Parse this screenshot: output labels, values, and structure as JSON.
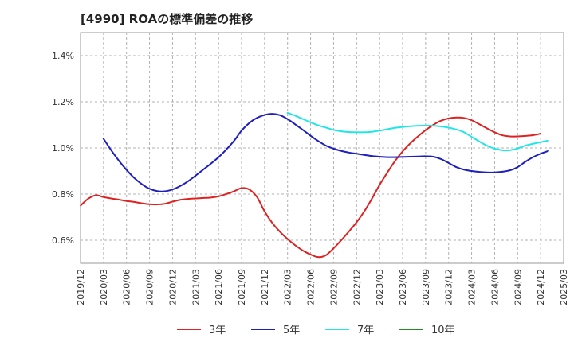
{
  "chart_data": {
    "type": "line",
    "title": "[4990]  ROAの標準偏差の推移",
    "xlabel": "",
    "ylabel": "",
    "x_ticks": [
      "2019/12",
      "2020/03",
      "2020/06",
      "2020/09",
      "2020/12",
      "2021/03",
      "2021/06",
      "2021/09",
      "2021/12",
      "2022/03",
      "2022/06",
      "2022/09",
      "2022/12",
      "2023/03",
      "2023/06",
      "2023/09",
      "2023/12",
      "2024/03",
      "2024/06",
      "2024/09",
      "2024/12",
      "2025/03"
    ],
    "ylim": [
      0.5,
      1.5
    ],
    "y_ticks": [
      0.6,
      0.8,
      1.0,
      1.2,
      1.4
    ],
    "y_tick_labels": [
      "0.6%",
      "0.8%",
      "1.0%",
      "1.2%",
      "1.4%"
    ],
    "grid": "horizontal dashed",
    "legend_position": "bottom",
    "series": [
      {
        "name": "3年",
        "color": "#dd2222",
        "points": [
          [
            "2019/12",
            0.75
          ],
          [
            "2020/01",
            0.78
          ],
          [
            "2020/02",
            0.795
          ],
          [
            "2020/03",
            0.787
          ],
          [
            "2020/04",
            0.781
          ],
          [
            "2020/05",
            0.776
          ],
          [
            "2020/06",
            0.77
          ],
          [
            "2020/07",
            0.766
          ],
          [
            "2020/08",
            0.76
          ],
          [
            "2020/09",
            0.756
          ],
          [
            "2020/10",
            0.755
          ],
          [
            "2020/11",
            0.758
          ],
          [
            "2020/12",
            0.767
          ],
          [
            "2021/01",
            0.775
          ],
          [
            "2021/02",
            0.779
          ],
          [
            "2021/03",
            0.781
          ],
          [
            "2021/04",
            0.783
          ],
          [
            "2021/05",
            0.785
          ],
          [
            "2021/06",
            0.79
          ],
          [
            "2021/07",
            0.8
          ],
          [
            "2021/08",
            0.812
          ],
          [
            "2021/09",
            0.826
          ],
          [
            "2021/10",
            0.82
          ],
          [
            "2021/11",
            0.788
          ],
          [
            "2021/12",
            0.725
          ],
          [
            "2022/01",
            0.675
          ],
          [
            "2022/02",
            0.637
          ],
          [
            "2022/03",
            0.605
          ],
          [
            "2022/04",
            0.578
          ],
          [
            "2022/05",
            0.555
          ],
          [
            "2022/06",
            0.538
          ],
          [
            "2022/07",
            0.527
          ],
          [
            "2022/08",
            0.535
          ],
          [
            "2022/09",
            0.565
          ],
          [
            "2022/10",
            0.6
          ],
          [
            "2022/11",
            0.638
          ],
          [
            "2022/12",
            0.678
          ],
          [
            "2023/01",
            0.725
          ],
          [
            "2023/02",
            0.78
          ],
          [
            "2023/03",
            0.84
          ],
          [
            "2023/04",
            0.893
          ],
          [
            "2023/05",
            0.943
          ],
          [
            "2023/06",
            0.985
          ],
          [
            "2023/07",
            1.02
          ],
          [
            "2023/08",
            1.05
          ],
          [
            "2023/09",
            1.077
          ],
          [
            "2023/10",
            1.1
          ],
          [
            "2023/11",
            1.118
          ],
          [
            "2023/12",
            1.128
          ],
          [
            "2024/01",
            1.132
          ],
          [
            "2024/02",
            1.13
          ],
          [
            "2024/03",
            1.12
          ],
          [
            "2024/04",
            1.103
          ],
          [
            "2024/05",
            1.085
          ],
          [
            "2024/06",
            1.068
          ],
          [
            "2024/07",
            1.055
          ],
          [
            "2024/08",
            1.05
          ],
          [
            "2024/09",
            1.05
          ],
          [
            "2024/10",
            1.052
          ],
          [
            "2024/11",
            1.055
          ],
          [
            "2024/12",
            1.062
          ]
        ]
      },
      {
        "name": "5年",
        "color": "#1f1fbf",
        "points": [
          [
            "2020/03",
            1.04
          ],
          [
            "2020/04",
            0.99
          ],
          [
            "2020/05",
            0.945
          ],
          [
            "2020/06",
            0.905
          ],
          [
            "2020/07",
            0.87
          ],
          [
            "2020/08",
            0.843
          ],
          [
            "2020/09",
            0.823
          ],
          [
            "2020/10",
            0.813
          ],
          [
            "2020/11",
            0.812
          ],
          [
            "2020/12",
            0.82
          ],
          [
            "2021/01",
            0.835
          ],
          [
            "2021/02",
            0.855
          ],
          [
            "2021/03",
            0.88
          ],
          [
            "2021/04",
            0.906
          ],
          [
            "2021/05",
            0.932
          ],
          [
            "2021/06",
            0.96
          ],
          [
            "2021/07",
            0.993
          ],
          [
            "2021/08",
            1.03
          ],
          [
            "2021/09",
            1.075
          ],
          [
            "2021/10",
            1.108
          ],
          [
            "2021/11",
            1.13
          ],
          [
            "2021/12",
            1.143
          ],
          [
            "2022/01",
            1.148
          ],
          [
            "2022/02",
            1.142
          ],
          [
            "2022/03",
            1.125
          ],
          [
            "2022/04",
            1.102
          ],
          [
            "2022/05",
            1.078
          ],
          [
            "2022/06",
            1.053
          ],
          [
            "2022/07",
            1.03
          ],
          [
            "2022/08",
            1.01
          ],
          [
            "2022/09",
            0.997
          ],
          [
            "2022/10",
            0.987
          ],
          [
            "2022/11",
            0.98
          ],
          [
            "2022/12",
            0.975
          ],
          [
            "2023/01",
            0.97
          ],
          [
            "2023/02",
            0.965
          ],
          [
            "2023/03",
            0.962
          ],
          [
            "2023/04",
            0.96
          ],
          [
            "2023/05",
            0.96
          ],
          [
            "2023/06",
            0.961
          ],
          [
            "2023/07",
            0.962
          ],
          [
            "2023/08",
            0.963
          ],
          [
            "2023/09",
            0.964
          ],
          [
            "2023/10",
            0.962
          ],
          [
            "2023/11",
            0.952
          ],
          [
            "2023/12",
            0.935
          ],
          [
            "2024/01",
            0.917
          ],
          [
            "2024/02",
            0.906
          ],
          [
            "2024/03",
            0.9
          ],
          [
            "2024/04",
            0.896
          ],
          [
            "2024/05",
            0.894
          ],
          [
            "2024/06",
            0.894
          ],
          [
            "2024/07",
            0.897
          ],
          [
            "2024/08",
            0.903
          ],
          [
            "2024/09",
            0.917
          ],
          [
            "2024/10",
            0.94
          ],
          [
            "2024/11",
            0.96
          ],
          [
            "2024/12",
            0.975
          ],
          [
            "2025/01",
            0.987
          ]
        ]
      },
      {
        "name": "7年",
        "color": "#22e6e6",
        "points": [
          [
            "2022/03",
            1.152
          ],
          [
            "2022/04",
            1.14
          ],
          [
            "2022/05",
            1.125
          ],
          [
            "2022/06",
            1.111
          ],
          [
            "2022/07",
            1.098
          ],
          [
            "2022/08",
            1.088
          ],
          [
            "2022/09",
            1.078
          ],
          [
            "2022/10",
            1.072
          ],
          [
            "2022/11",
            1.069
          ],
          [
            "2022/12",
            1.068
          ],
          [
            "2023/01",
            1.068
          ],
          [
            "2023/02",
            1.07
          ],
          [
            "2023/03",
            1.075
          ],
          [
            "2023/04",
            1.081
          ],
          [
            "2023/05",
            1.087
          ],
          [
            "2023/06",
            1.091
          ],
          [
            "2023/07",
            1.094
          ],
          [
            "2023/08",
            1.096
          ],
          [
            "2023/09",
            1.097
          ],
          [
            "2023/10",
            1.096
          ],
          [
            "2023/11",
            1.093
          ],
          [
            "2023/12",
            1.088
          ],
          [
            "2024/01",
            1.08
          ],
          [
            "2024/02",
            1.068
          ],
          [
            "2024/03",
            1.048
          ],
          [
            "2024/04",
            1.028
          ],
          [
            "2024/05",
            1.01
          ],
          [
            "2024/06",
            0.997
          ],
          [
            "2024/07",
            0.99
          ],
          [
            "2024/08",
            0.99
          ],
          [
            "2024/09",
            0.998
          ],
          [
            "2024/10",
            1.01
          ],
          [
            "2024/11",
            1.018
          ],
          [
            "2024/12",
            1.025
          ],
          [
            "2025/01",
            1.032
          ]
        ]
      },
      {
        "name": "10年",
        "color": "#228b22",
        "points": []
      }
    ]
  }
}
